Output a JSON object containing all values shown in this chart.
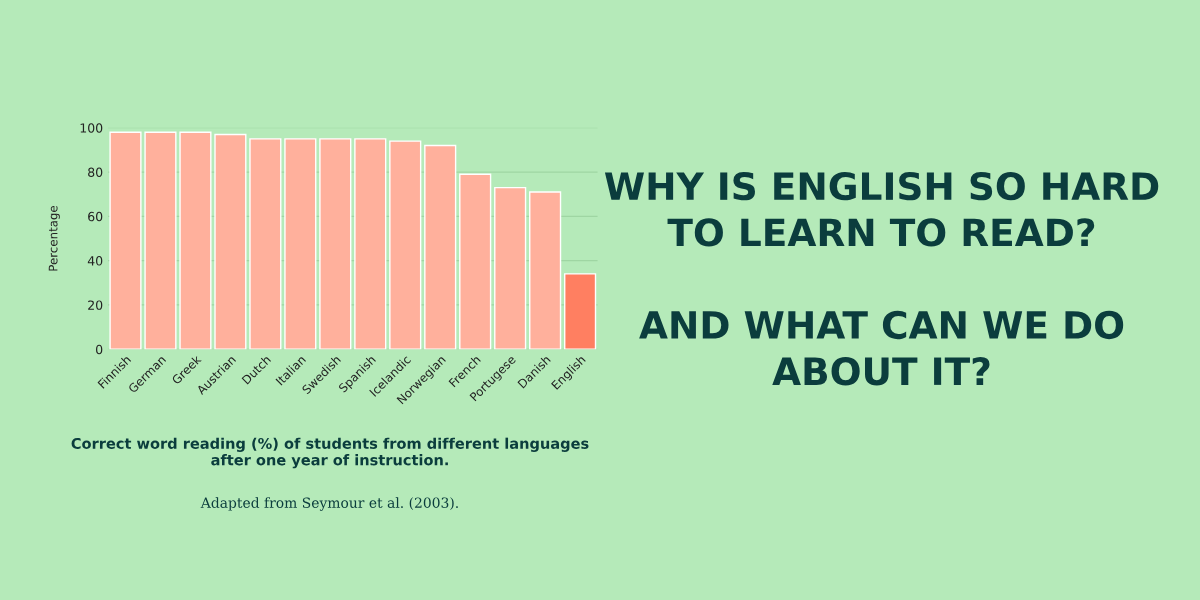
{
  "chart_data": {
    "type": "bar",
    "title": "WHY IS ENGLISH SO HARD\nTO LEARN TO READ?\n\nAND WHAT CAN WE DO\nABOUT IT?",
    "ylabel": "Percentage",
    "categories": [
      "Finnish",
      "German",
      "Greek",
      "Austrian",
      "Dutch",
      "Italian",
      "Swedish",
      "Spanish",
      "Icelandic",
      "Norwegian",
      "French",
      "Portugese",
      "Danish",
      "English"
    ],
    "values": [
      98,
      98,
      98,
      97,
      95,
      95,
      95,
      95,
      94,
      92,
      79,
      73,
      71,
      34
    ],
    "colors": [
      "#ffb09c",
      "#ffb09c",
      "#ffb09c",
      "#ffb09c",
      "#ffb09c",
      "#ffb09c",
      "#ffb09c",
      "#ffb09c",
      "#ffb09c",
      "#ffb09c",
      "#ffb09c",
      "#ffb09c",
      "#ffb09c",
      "#ff7f61"
    ],
    "ylim": [
      0,
      100
    ],
    "yticks": [
      0,
      20,
      40,
      60,
      80,
      100
    ],
    "grid": "y",
    "annotations": [
      "Correct word reading (%) of students from different languages\nafter one year of instruction.",
      "Adapted from Seymour et al. (2003)."
    ]
  }
}
